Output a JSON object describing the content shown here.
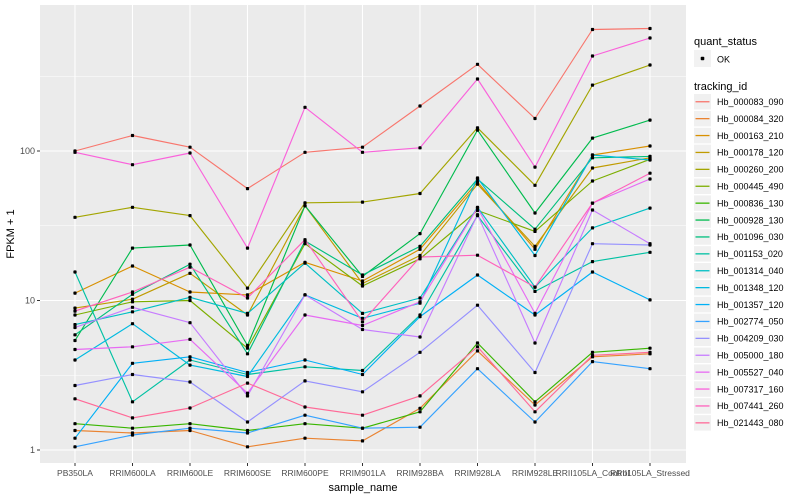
{
  "figure": {
    "background": "#FFFFFF",
    "panel_fill": "#EBEBEB",
    "grid_color": "#FFFFFF",
    "tick_color": "#333333",
    "tick_label_color": "#4D4D4D",
    "point_color": "#000000"
  },
  "chart_data": {
    "type": "line",
    "title": "",
    "xlabel": "sample_name",
    "ylabel": "FPKM + 1",
    "y_scale": "log10",
    "y_ticks": [
      1,
      10,
      100
    ],
    "y_minor_ticks": [
      3.162,
      31.62,
      316.2
    ],
    "ylim": [
      0.82,
      950
    ],
    "grid": true,
    "legend_position": "right",
    "legend": {
      "quant_title": "quant_status",
      "quant_items": [
        {
          "label": "OK",
          "marker": "black-point"
        }
      ],
      "tracking_title": "tracking_id"
    },
    "categories": [
      "PB350LA",
      "RRIM600LA",
      "RRIM600LE",
      "RRIM600SE",
      "RRIM600PE",
      "RRIM901LA",
      "RRIM928BA",
      "RRIM928LA",
      "RRIM928LE",
      "RRII105LA_Control",
      "RRII105LA_Stressed"
    ],
    "series": [
      {
        "name": "Hb_000083_090",
        "color": "#F8766D",
        "values": [
          100,
          127,
          106,
          56,
          98,
          106,
          200,
          380,
          165,
          650,
          660
        ]
      },
      {
        "name": "Hb_000084_320",
        "color": "#EA8331",
        "values": [
          1.35,
          1.3,
          1.35,
          1.05,
          1.2,
          1.15,
          1.9,
          4.6,
          2.0,
          4.2,
          4.4
        ]
      },
      {
        "name": "Hb_000163_210",
        "color": "#D89000",
        "values": [
          11.2,
          17,
          11.4,
          10.9,
          18,
          13.5,
          22,
          62,
          22,
          94,
          108
        ]
      },
      {
        "name": "Hb_000178_120",
        "color": "#C09B00",
        "values": [
          8.9,
          10.2,
          15.2,
          8.0,
          43,
          13,
          20,
          60,
          23,
          77,
          90
        ]
      },
      {
        "name": "Hb_000260_200",
        "color": "#A3A500",
        "values": [
          36,
          42,
          37,
          12.1,
          45,
          45.5,
          52,
          143,
          59,
          276,
          376
        ]
      },
      {
        "name": "Hb_000445_490",
        "color": "#7CAE00",
        "values": [
          8.0,
          9.8,
          10,
          4.8,
          24,
          12.5,
          19,
          40,
          29,
          63,
          88
        ]
      },
      {
        "name": "Hb_000836_130",
        "color": "#39B600",
        "values": [
          1.5,
          1.4,
          1.5,
          1.35,
          1.5,
          1.4,
          1.8,
          5.2,
          2.1,
          4.5,
          4.8
        ]
      },
      {
        "name": "Hb_000928_130",
        "color": "#00BB4E",
        "values": [
          5.4,
          22.4,
          23.5,
          5.0,
          43,
          14.5,
          28,
          138,
          38.5,
          122,
          161
        ]
      },
      {
        "name": "Hb_001096_030",
        "color": "#00BF7D",
        "values": [
          5.9,
          11,
          17.5,
          4.4,
          25,
          14.8,
          23,
          65,
          30,
          90,
          92
        ]
      },
      {
        "name": "Hb_001153_020",
        "color": "#00C1A3",
        "values": [
          15.5,
          2.1,
          4.0,
          3.2,
          3.6,
          3.4,
          8.0,
          37,
          11.5,
          18.2,
          21
        ]
      },
      {
        "name": "Hb_001314_040",
        "color": "#00BFC4",
        "values": [
          6.9,
          8.4,
          10.5,
          8.2,
          17.8,
          8.2,
          10.4,
          42,
          12.3,
          30.6,
          41.5
        ]
      },
      {
        "name": "Hb_001348_120",
        "color": "#00BAE0",
        "values": [
          4.0,
          7.0,
          3.7,
          3.1,
          10.9,
          7.6,
          9.6,
          66,
          20,
          94,
          87
        ]
      },
      {
        "name": "Hb_001357_120",
        "color": "#00B0F6",
        "values": [
          1.2,
          3.8,
          4.2,
          3.3,
          4.0,
          3.2,
          7.8,
          14.8,
          8.0,
          15.5,
          10.1
        ]
      },
      {
        "name": "Hb_002774_050",
        "color": "#35A2FF",
        "values": [
          1.05,
          1.26,
          1.4,
          1.3,
          1.71,
          1.4,
          1.42,
          3.5,
          1.54,
          3.9,
          3.5
        ]
      },
      {
        "name": "Hb_004209_030",
        "color": "#9590FF",
        "values": [
          2.7,
          3.2,
          2.85,
          1.54,
          2.9,
          2.45,
          4.5,
          9.3,
          3.3,
          24,
          23.5
        ]
      },
      {
        "name": "Hb_005000_180",
        "color": "#C77CFF",
        "values": [
          6.6,
          9.0,
          7.1,
          2.3,
          10.9,
          6.4,
          5.7,
          37.5,
          5.2,
          40.3,
          24
        ]
      },
      {
        "name": "Hb_005527_040",
        "color": "#E76BF3",
        "values": [
          4.7,
          4.9,
          5.5,
          2.4,
          8.0,
          6.8,
          9.8,
          41.6,
          8.2,
          44.8,
          65
        ]
      },
      {
        "name": "Hb_007317_160",
        "color": "#FA62DB",
        "values": [
          98,
          81,
          97,
          22.4,
          196,
          98,
          105,
          303,
          78,
          432,
          570
        ]
      },
      {
        "name": "Hb_007441_260",
        "color": "#FF62BC",
        "values": [
          8.5,
          11.4,
          16.7,
          10.4,
          25.5,
          7.2,
          19.5,
          20.1,
          12.3,
          44.8,
          71
        ]
      },
      {
        "name": "Hb_021443_080",
        "color": "#FF6A98",
        "values": [
          2.2,
          1.64,
          1.91,
          2.8,
          1.94,
          1.71,
          2.3,
          4.9,
          1.8,
          4.3,
          4.5
        ]
      }
    ]
  }
}
